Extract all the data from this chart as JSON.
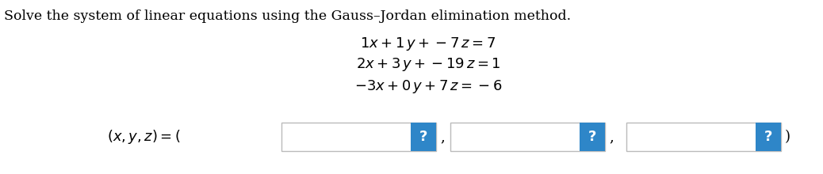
{
  "title": "Solve the system of linear equations using the Gauss–Jordan elimination method.",
  "eq1": "$1x + 1\\,y + -7\\,z = 7$",
  "eq2": "$2x + 3\\,y + -19\\,z = 1$",
  "eq3": "$-3x + 0\\,y + 7\\,z = -6$",
  "answer_label": "$(x, y, z) = ($",
  "answer_close": "$)$",
  "question_mark": "?",
  "bg_color": "#ffffff",
  "box_border_color": "#bbbbbb",
  "question_box_color": "#2e86c8",
  "question_text_color": "#ffffff",
  "title_fontsize": 12.5,
  "eq_fontsize": 13,
  "answer_fontsize": 13
}
